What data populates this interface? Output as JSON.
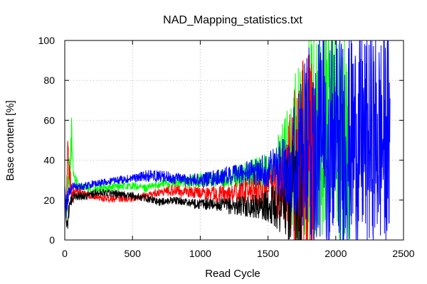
{
  "chart_data": {
    "type": "line",
    "title": "NAD_Mapping_statistics.txt",
    "xlabel": "Read Cycle",
    "ylabel": "Base content [%]",
    "xlim": [
      0,
      2500
    ],
    "ylim": [
      0,
      100
    ],
    "xticks": [
      0,
      500,
      1000,
      1500,
      2000,
      2500
    ],
    "yticks": [
      0,
      20,
      40,
      60,
      80,
      100
    ],
    "grid": true,
    "legend": "none",
    "series": [
      {
        "color": "#00ff00",
        "x": [
          0,
          10,
          20,
          30,
          40,
          50,
          60,
          70,
          100,
          150,
          200,
          300,
          400,
          500,
          600,
          700,
          800,
          900,
          1000,
          1100,
          1200,
          1300,
          1400,
          1500,
          1550,
          1600,
          1650,
          1700,
          1750,
          1800,
          1850,
          1900,
          1950,
          2000,
          2050,
          2100
        ],
        "y": [
          27,
          14,
          22,
          30,
          38,
          52,
          40,
          32,
          27,
          26,
          25,
          26,
          27,
          27,
          26,
          28,
          29,
          29,
          30,
          30,
          31,
          32,
          33,
          34,
          36,
          38,
          40,
          42,
          45,
          50,
          50,
          50,
          55,
          50,
          50,
          50
        ],
        "noise": [
          2,
          6,
          8,
          10,
          10,
          10,
          8,
          5,
          2,
          2,
          2,
          2,
          2,
          2,
          2,
          2,
          3,
          3,
          4,
          4,
          5,
          6,
          8,
          10,
          14,
          20,
          30,
          45,
          50,
          55,
          55,
          55,
          55,
          55,
          55,
          55
        ]
      },
      {
        "color": "#ff0000",
        "x": [
          0,
          10,
          20,
          30,
          40,
          50,
          60,
          70,
          100,
          150,
          200,
          300,
          400,
          500,
          600,
          700,
          800,
          900,
          1000,
          1100,
          1200,
          1300,
          1400,
          1500,
          1550,
          1600,
          1650,
          1700,
          1750,
          1800,
          1850
        ],
        "y": [
          25,
          15,
          43,
          40,
          30,
          20,
          22,
          23,
          24,
          23,
          22,
          21,
          21,
          21,
          22,
          24,
          25,
          24,
          24,
          23,
          23,
          24,
          25,
          26,
          27,
          28,
          30,
          32,
          35,
          40,
          45
        ],
        "noise": [
          2,
          6,
          8,
          8,
          8,
          6,
          5,
          4,
          2,
          2,
          2,
          2,
          2,
          2,
          2,
          2,
          3,
          3,
          3,
          4,
          5,
          6,
          8,
          10,
          14,
          20,
          30,
          45,
          55,
          55,
          55
        ]
      },
      {
        "color": "#000000",
        "x": [
          0,
          10,
          20,
          30,
          40,
          50,
          60,
          70,
          100,
          150,
          200,
          300,
          400,
          500,
          600,
          700,
          800,
          900,
          1000,
          1100,
          1200,
          1300,
          1400,
          1500,
          1550,
          1600,
          1650,
          1700,
          1750
        ],
        "y": [
          22,
          10,
          8,
          15,
          18,
          20,
          21,
          22,
          22,
          22,
          23,
          24,
          23,
          22,
          21,
          19,
          20,
          19,
          18,
          18,
          17,
          17,
          17,
          17,
          18,
          18,
          19,
          20,
          22
        ],
        "noise": [
          2,
          4,
          4,
          4,
          3,
          3,
          2,
          2,
          2,
          2,
          2,
          2,
          2,
          2,
          2,
          2,
          2,
          2,
          3,
          3,
          4,
          5,
          6,
          8,
          12,
          18,
          25,
          35,
          45
        ]
      },
      {
        "color": "#0000ff",
        "x": [
          0,
          10,
          20,
          30,
          40,
          50,
          60,
          70,
          100,
          150,
          200,
          300,
          400,
          500,
          600,
          700,
          800,
          900,
          1000,
          1100,
          1200,
          1300,
          1400,
          1500,
          1550,
          1600,
          1650,
          1700,
          1750,
          1800,
          1850,
          1900,
          1950,
          2000,
          2050,
          2100,
          2150,
          2200,
          2250,
          2300,
          2350,
          2400
        ],
        "y": [
          26,
          16,
          20,
          24,
          25,
          26,
          27,
          27,
          27,
          27,
          28,
          29,
          30,
          31,
          32,
          32,
          31,
          30,
          30,
          31,
          32,
          33,
          34,
          35,
          36,
          37,
          38,
          40,
          43,
          47,
          50,
          50,
          50,
          50,
          50,
          50,
          50,
          50,
          50,
          50,
          50,
          50
        ],
        "noise": [
          2,
          6,
          6,
          4,
          3,
          2,
          2,
          2,
          2,
          2,
          2,
          2,
          2,
          2,
          3,
          3,
          3,
          3,
          4,
          4,
          5,
          6,
          7,
          9,
          12,
          16,
          22,
          30,
          40,
          50,
          55,
          55,
          55,
          55,
          55,
          55,
          55,
          55,
          55,
          55,
          55,
          55
        ]
      }
    ]
  }
}
